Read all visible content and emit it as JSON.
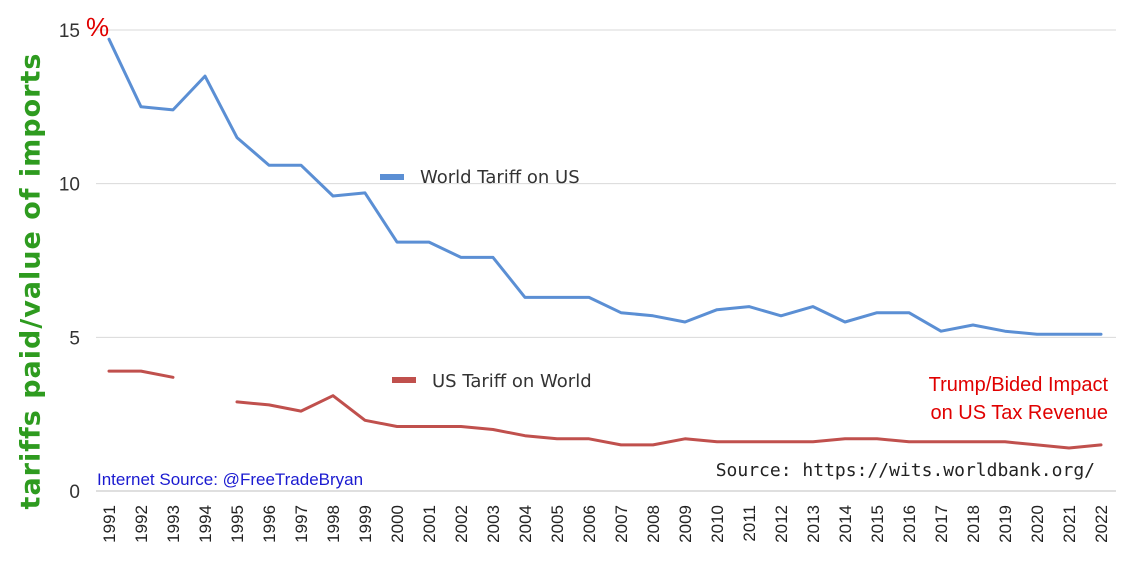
{
  "chart_data": {
    "type": "line",
    "ylabel": "tariffs paid/value of imports",
    "unit_label": "%",
    "ylim": [
      0,
      15
    ],
    "yticks": [
      "0",
      "5",
      "10",
      "15"
    ],
    "x": [
      "1991",
      "1992",
      "1993",
      "1994",
      "1995",
      "1996",
      "1997",
      "1998",
      "1999",
      "2000",
      "2001",
      "2002",
      "2003",
      "2004",
      "2005",
      "2006",
      "2007",
      "2008",
      "2009",
      "2010",
      "2011",
      "2012",
      "2013",
      "2014",
      "2015",
      "2016",
      "2017",
      "2018",
      "2019",
      "2020",
      "2021",
      "2022"
    ],
    "series": [
      {
        "name": "World Tariff on US",
        "color": "#5b8fd4",
        "values": [
          14.7,
          12.5,
          12.4,
          13.5,
          11.5,
          10.6,
          10.6,
          9.6,
          9.7,
          8.1,
          8.1,
          7.6,
          7.6,
          6.3,
          6.3,
          6.3,
          5.8,
          5.7,
          5.5,
          5.9,
          6.0,
          5.7,
          6.0,
          5.5,
          5.8,
          5.8,
          5.2,
          5.4,
          5.2,
          5.1,
          5.1,
          5.1
        ]
      },
      {
        "name": "US Tariff on World",
        "color": "#c0504d",
        "values": [
          3.9,
          3.9,
          3.7,
          null,
          2.9,
          2.8,
          2.6,
          3.1,
          2.3,
          2.1,
          2.1,
          2.1,
          2.0,
          1.8,
          1.7,
          1.7,
          1.5,
          1.5,
          1.7,
          1.6,
          1.6,
          1.6,
          1.6,
          1.7,
          1.7,
          1.6,
          1.6,
          1.6,
          1.6,
          1.5,
          1.4,
          1.5
        ]
      }
    ],
    "legend_placement": "inline near lines",
    "grid": true
  },
  "annotations": {
    "impact": [
      "Trump/Bided Impact",
      "on US Tax Revenue"
    ],
    "internet_source": "Internet Source: @FreeTradeBryan",
    "source": "Source: https://wits.worldbank.org/"
  },
  "colors": {
    "ylabel": "#2e9b1f",
    "unit": "#e00000",
    "impact": "#e00000",
    "internet_source": "#1a1ad0",
    "grid": "#d9d9d9"
  }
}
